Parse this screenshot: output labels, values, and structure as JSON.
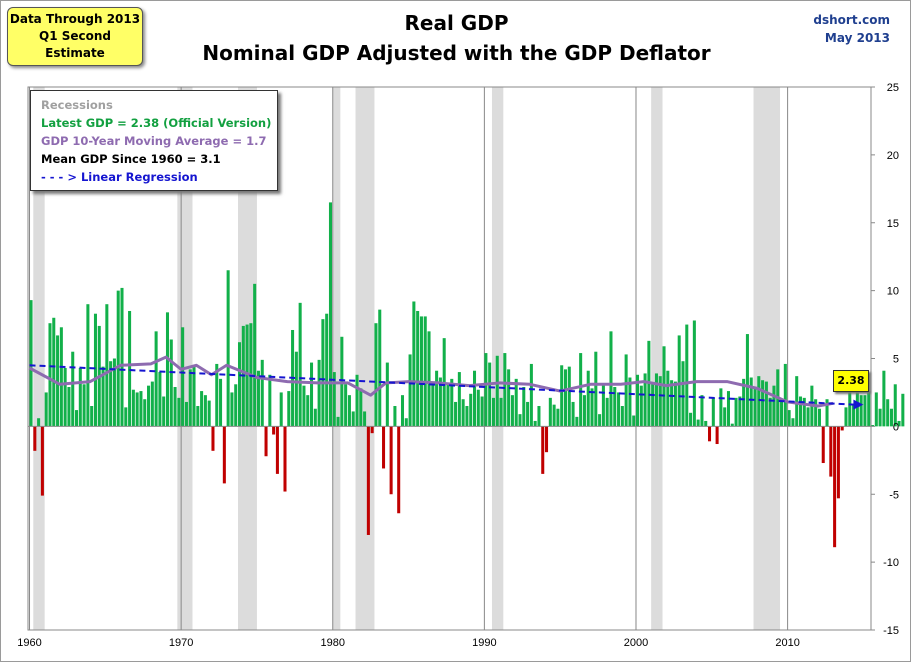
{
  "note": {
    "line1": "Data Through 2013",
    "line2": "Q1 Second Estimate"
  },
  "credit": {
    "line1": "dshort.com",
    "line2": "May 2013"
  },
  "callout": "2.38",
  "colors": {
    "positive": "#12b04a",
    "negative": "#c00000",
    "moving_avg": "#8e6bb0",
    "regression": "#1515d0",
    "recession": "#dcdcdc",
    "legend_recession": "#a0a0a0",
    "legend_latest": "#12a040",
    "legend_ma": "#8e6bb0",
    "legend_mean": "#000000",
    "legend_regression": "#1515d0"
  },
  "chart_data": {
    "type": "bar",
    "title": "Real GDP",
    "subtitle": "Nominal GDP Adjusted with the GDP Deflator",
    "xlabel": "",
    "ylabel": "",
    "x_start": 1960.0,
    "x_step": 0.25,
    "xlim": [
      1959.9,
      2015.5
    ],
    "ylim": [
      -15,
      25
    ],
    "x_ticks": [
      1960,
      1970,
      1980,
      1990,
      2000,
      2010
    ],
    "y_ticks": [
      -15,
      -10,
      -5,
      0,
      5,
      10,
      15,
      20,
      25
    ],
    "legend": {
      "recessions": "Recessions",
      "latest": "Latest GDP = 2.38  (Official Version)",
      "moving_avg": "GDP 10-Year Moving Average = 1.7",
      "mean": "Mean GDP  Since 1960 = 3.1",
      "regression": "- - - > Linear Regression"
    },
    "recessions": [
      [
        1960.25,
        1961.0
      ],
      [
        1969.75,
        1970.75
      ],
      [
        1973.75,
        1975.0
      ],
      [
        1980.0,
        1980.5
      ],
      [
        1981.5,
        1982.75
      ],
      [
        1990.5,
        1991.25
      ],
      [
        2001.0,
        2001.75
      ],
      [
        2007.75,
        2009.5
      ]
    ],
    "values": [
      9.3,
      -1.8,
      0.6,
      -5.1,
      2.5,
      7.6,
      8.0,
      6.7,
      7.3,
      4.3,
      2.9,
      5.5,
      1.2,
      4.3,
      3.1,
      9.0,
      1.5,
      8.3,
      7.4,
      4.4,
      9.0,
      4.8,
      5.0,
      10.0,
      10.2,
      1.4,
      8.5,
      2.7,
      2.5,
      2.6,
      2.0,
      3.0,
      3.3,
      7.0,
      4.0,
      2.2,
      8.4,
      6.4,
      2.9,
      2.1,
      7.3,
      1.8,
      4.2,
      4.5,
      1.5,
      2.6,
      2.3,
      1.9,
      -1.8,
      4.6,
      3.5,
      -4.2,
      11.5,
      2.5,
      3.1,
      6.2,
      7.4,
      7.5,
      7.6,
      10.5,
      4.1,
      4.9,
      -2.2,
      3.8,
      -0.6,
      -3.5,
      2.5,
      -4.8,
      2.6,
      7.1,
      5.5,
      9.1,
      3.0,
      2.3,
      4.7,
      1.3,
      4.9,
      7.9,
      8.3,
      16.5,
      4.0,
      0.7,
      6.6,
      3.1,
      2.3,
      1.1,
      3.8,
      2.8,
      1.1,
      -8.0,
      -0.5,
      7.6,
      8.6,
      -3.1,
      4.7,
      -5.0,
      1.5,
      -6.4,
      2.3,
      0.6,
      5.3,
      9.2,
      8.5,
      8.1,
      8.1,
      7.0,
      3.3,
      4.1,
      3.6,
      6.5,
      3.2,
      3.5,
      1.8,
      4.0,
      2.0,
      1.5,
      2.4,
      4.1,
      2.7,
      2.2,
      5.4,
      4.7,
      2.1,
      5.2,
      2.1,
      5.4,
      4.2,
      2.3,
      3.5,
      0.9,
      2.9,
      1.8,
      4.6,
      0.4,
      1.5,
      -3.5,
      -1.9,
      2.1,
      1.6,
      1.3,
      4.5,
      4.2,
      4.4,
      1.8,
      0.7,
      5.4,
      2.3,
      4.1,
      2.8,
      5.5,
      0.9,
      3.1,
      2.1,
      7.0,
      2.9,
      2.5,
      1.5,
      5.3,
      3.6,
      0.8,
      3.8,
      3.0,
      3.9,
      6.3,
      3.1,
      3.9,
      3.7,
      5.9,
      4.1,
      3.4,
      3.3,
      6.7,
      4.8,
      7.5,
      1.0,
      7.8,
      0.5,
      2.3,
      0.4,
      -1.1,
      2.1,
      -1.3,
      2.8,
      1.4,
      2.6,
      0.2,
      2.1,
      2.2,
      3.5,
      6.8,
      3.6,
      2.9,
      3.7,
      3.4,
      3.3,
      2.1,
      3.0,
      4.2,
      2.0,
      4.6,
      1.2,
      0.6,
      3.7,
      2.2,
      2.1,
      1.4,
      3.0,
      2.0,
      1.3,
      -2.7,
      2.0,
      -3.7,
      -8.9,
      -5.3,
      -0.3,
      1.4,
      3.9,
      1.6,
      2.5,
      2.3,
      2.3,
      2.6,
      0.1,
      2.5,
      1.3,
      4.1,
      2.0,
      1.3,
      3.1,
      0.4,
      2.4
    ],
    "moving_avg": [
      [
        1960,
        4.3
      ],
      [
        1962,
        3.1
      ],
      [
        1964,
        3.3
      ],
      [
        1966,
        4.5
      ],
      [
        1968,
        4.6
      ],
      [
        1969,
        5.1
      ],
      [
        1970,
        4.2
      ],
      [
        1971,
        4.5
      ],
      [
        1972,
        3.8
      ],
      [
        1973,
        4.5
      ],
      [
        1975,
        3.6
      ],
      [
        1977,
        3.3
      ],
      [
        1979,
        3.2
      ],
      [
        1981,
        3.2
      ],
      [
        1982.5,
        2.3
      ],
      [
        1983.5,
        3.2
      ],
      [
        1985,
        3.3
      ],
      [
        1987,
        3.2
      ],
      [
        1989,
        3.0
      ],
      [
        1991,
        3.2
      ],
      [
        1993,
        3.1
      ],
      [
        1995,
        2.6
      ],
      [
        1997,
        3.1
      ],
      [
        1999,
        3.1
      ],
      [
        2000.5,
        3.3
      ],
      [
        2002,
        3.0
      ],
      [
        2004,
        3.3
      ],
      [
        2006,
        3.3
      ],
      [
        2008,
        2.8
      ],
      [
        2010,
        1.8
      ],
      [
        2012,
        1.5
      ],
      [
        2013,
        1.7
      ]
    ],
    "regression": [
      [
        1960,
        4.5
      ],
      [
        2015,
        1.6
      ]
    ]
  }
}
